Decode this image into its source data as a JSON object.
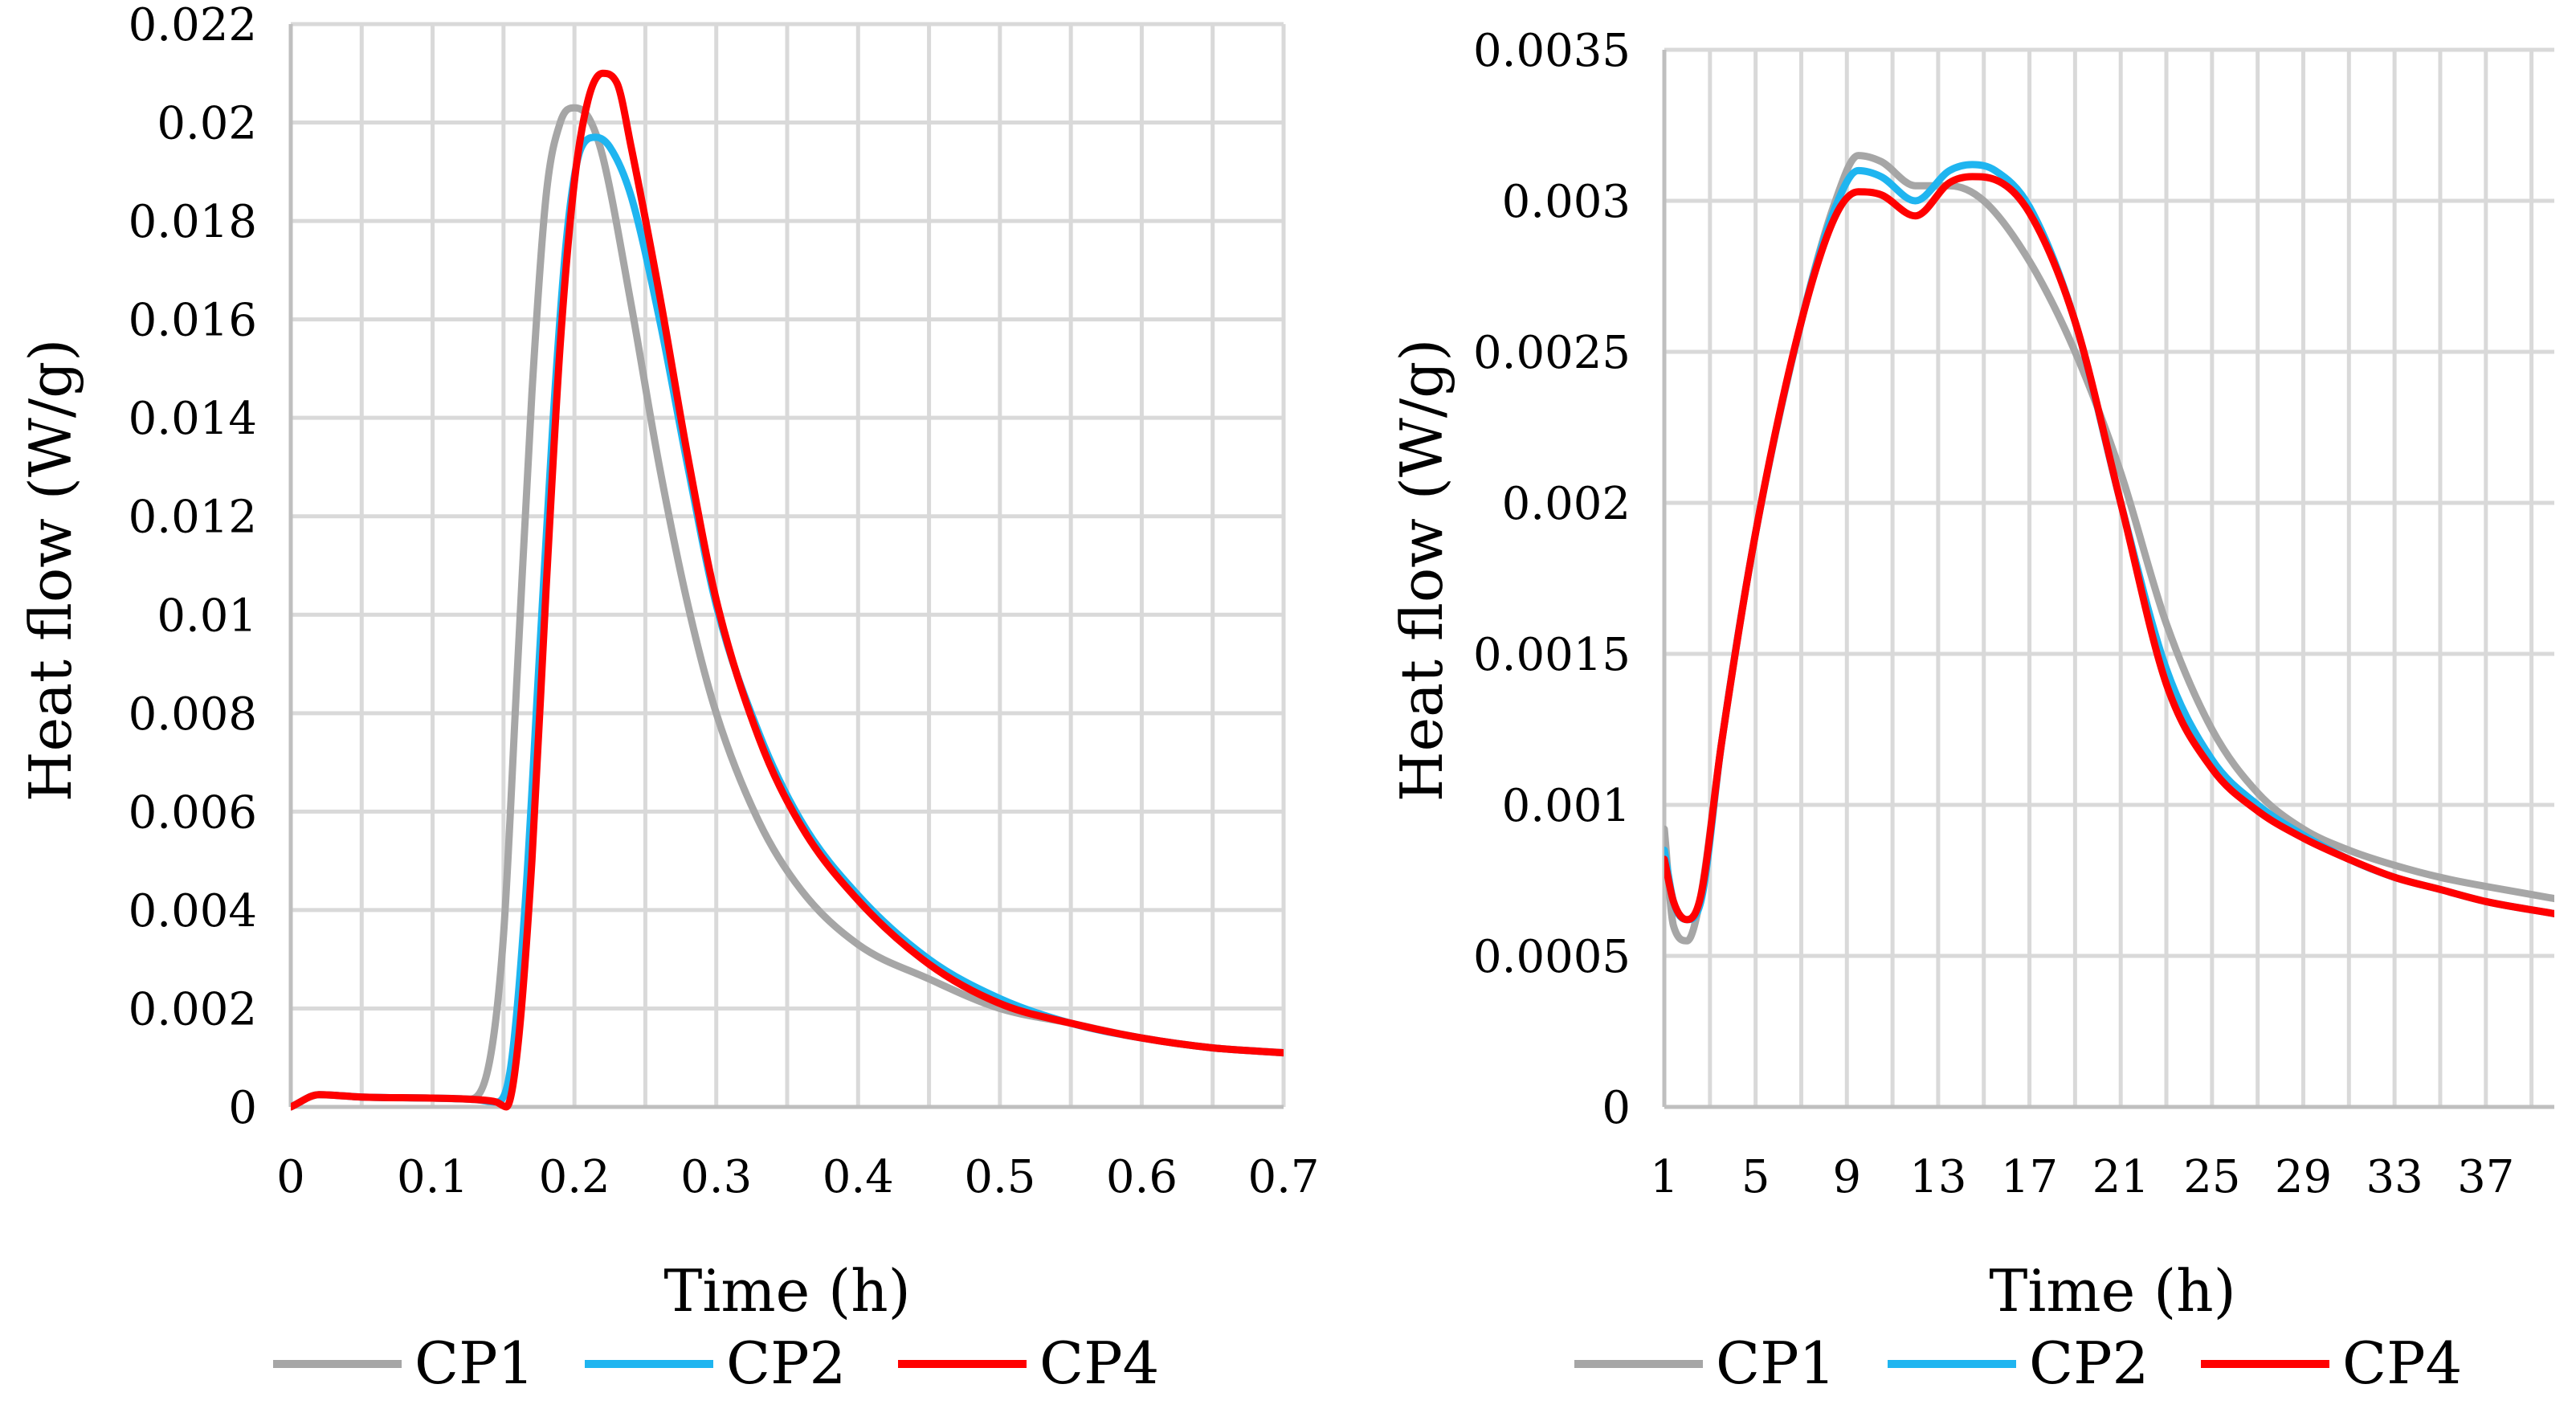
{
  "chart_data": [
    {
      "type": "line",
      "xlabel": "Time (h)",
      "ylabel": "Heat flow (W/g)",
      "xlim": [
        0,
        0.7
      ],
      "ylim": [
        0,
        0.022
      ],
      "x_ticks": [
        0,
        0.1,
        0.2,
        0.3,
        0.4,
        0.5,
        0.6,
        0.7
      ],
      "x_tick_labels": [
        "0",
        "0.1",
        "0.2",
        "0.3",
        "0.4",
        "0.5",
        "0.6",
        "0.7"
      ],
      "y_ticks": [
        0,
        0.002,
        0.004,
        0.006,
        0.008,
        0.01,
        0.012,
        0.014,
        0.016,
        0.018,
        0.02,
        0.022
      ],
      "y_tick_labels": [
        "0",
        "0.002",
        "0.004",
        "0.006",
        "0.008",
        "0.01",
        "0.012",
        "0.014",
        "0.016",
        "0.018",
        "0.02",
        "0.022"
      ],
      "grid": true,
      "legend_position": "bottom",
      "series": [
        {
          "name": "CP1",
          "color": "#A6A6A6",
          "x": [
            0,
            0.02,
            0.05,
            0.1,
            0.125,
            0.14,
            0.15,
            0.16,
            0.17,
            0.18,
            0.19,
            0.2,
            0.21,
            0.22,
            0.24,
            0.26,
            0.28,
            0.3,
            0.33,
            0.36,
            0.4,
            0.45,
            0.5,
            0.55,
            0.6,
            0.65,
            0.7
          ],
          "y": [
            0,
            0.00025,
            0.0002,
            0.00018,
            0.00016,
            0.0009,
            0.0035,
            0.009,
            0.0145,
            0.0185,
            0.02,
            0.0203,
            0.0201,
            0.0193,
            0.0163,
            0.013,
            0.0102,
            0.008,
            0.0058,
            0.0044,
            0.0033,
            0.0026,
            0.002,
            0.0017,
            0.0014,
            0.0012,
            0.0011
          ]
        },
        {
          "name": "CP2",
          "color": "#1FB5F0",
          "x": [
            0,
            0.02,
            0.05,
            0.1,
            0.13,
            0.145,
            0.155,
            0.165,
            0.175,
            0.185,
            0.195,
            0.205,
            0.215,
            0.225,
            0.24,
            0.26,
            0.28,
            0.3,
            0.33,
            0.36,
            0.4,
            0.45,
            0.5,
            0.55,
            0.6,
            0.65,
            0.7
          ],
          "y": [
            0,
            0.00025,
            0.0002,
            0.00018,
            0.00015,
            0.0001,
            0.0008,
            0.004,
            0.009,
            0.014,
            0.0178,
            0.0195,
            0.0197,
            0.0195,
            0.0185,
            0.016,
            0.013,
            0.0102,
            0.0076,
            0.0058,
            0.0043,
            0.003,
            0.0022,
            0.0017,
            0.0014,
            0.0012,
            0.0011
          ]
        },
        {
          "name": "CP4",
          "color": "#FF0000",
          "x": [
            0,
            0.02,
            0.05,
            0.1,
            0.13,
            0.145,
            0.152,
            0.16,
            0.17,
            0.18,
            0.19,
            0.2,
            0.21,
            0.22,
            0.23,
            0.24,
            0.26,
            0.28,
            0.3,
            0.33,
            0.36,
            0.4,
            0.45,
            0.5,
            0.55,
            0.6,
            0.65,
            0.7
          ],
          "y": [
            0,
            0.00025,
            0.0002,
            0.00018,
            0.00015,
            0.0001,
            0.0,
            0.0012,
            0.005,
            0.0105,
            0.0155,
            0.0188,
            0.0205,
            0.021,
            0.0208,
            0.0195,
            0.0165,
            0.0132,
            0.0103,
            0.0075,
            0.0057,
            0.0042,
            0.0029,
            0.0021,
            0.0017,
            0.0014,
            0.0012,
            0.0011
          ]
        }
      ]
    },
    {
      "type": "line",
      "xlabel": "Time (h)",
      "ylabel": "Heat flow (W/g)",
      "xlim": [
        1,
        40
      ],
      "ylim": [
        0,
        0.0035
      ],
      "x_ticks": [
        1,
        5,
        9,
        13,
        17,
        21,
        25,
        29,
        33,
        37
      ],
      "x_tick_labels": [
        "1",
        "5",
        "9",
        "13",
        "17",
        "21",
        "25",
        "29",
        "33",
        "37"
      ],
      "y_ticks": [
        0,
        0.0005,
        0.001,
        0.0015,
        0.002,
        0.0025,
        0.003,
        0.0035
      ],
      "y_tick_labels": [
        "0",
        "0.0005",
        "0.001",
        "0.0015",
        "0.002",
        "0.0025",
        "0.003",
        "0.0035"
      ],
      "grid": true,
      "legend_position": "bottom",
      "series": [
        {
          "name": "CP1",
          "color": "#A6A6A6",
          "x": [
            1,
            1.4,
            2,
            2.6,
            3.5,
            5,
            7,
            8.5,
            9.5,
            10.5,
            12,
            13.5,
            15,
            17,
            19,
            21,
            23,
            25,
            27,
            29,
            31,
            33,
            35,
            37,
            40
          ],
          "y": [
            0.00092,
            0.0006,
            0.00055,
            0.0007,
            0.0012,
            0.0019,
            0.0026,
            0.003,
            0.00315,
            0.00313,
            0.00305,
            0.00305,
            0.003,
            0.0028,
            0.0025,
            0.0021,
            0.0016,
            0.00125,
            0.00104,
            0.00092,
            0.00085,
            0.0008,
            0.00076,
            0.00073,
            0.00069
          ]
        },
        {
          "name": "CP2",
          "color": "#1FB5F0",
          "x": [
            1,
            1.4,
            2,
            2.6,
            3.5,
            5,
            7,
            8.5,
            9.5,
            10.5,
            12,
            13.5,
            14.5,
            15.5,
            17,
            19,
            21,
            23,
            25,
            27,
            29,
            31,
            33,
            35,
            37,
            40
          ],
          "y": [
            0.00085,
            0.00068,
            0.00062,
            0.00068,
            0.0012,
            0.0019,
            0.0026,
            0.00298,
            0.0031,
            0.00308,
            0.003,
            0.0031,
            0.00312,
            0.0031,
            0.00298,
            0.0026,
            0.002,
            0.00145,
            0.00115,
            0.001,
            0.0009,
            0.00082,
            0.00076,
            0.00072,
            0.00068,
            0.00064
          ]
        },
        {
          "name": "CP4",
          "color": "#FF0000",
          "x": [
            1,
            1.4,
            2,
            2.6,
            3.5,
            5,
            7,
            8.5,
            9.5,
            10.5,
            12,
            13.5,
            14.5,
            15.5,
            17,
            19,
            21,
            23,
            25,
            27,
            29,
            31,
            33,
            35,
            37,
            40
          ],
          "y": [
            0.00082,
            0.00068,
            0.00062,
            0.0007,
            0.0012,
            0.0019,
            0.0026,
            0.00295,
            0.00303,
            0.00302,
            0.00295,
            0.00306,
            0.00308,
            0.00307,
            0.00296,
            0.0026,
            0.002,
            0.0014,
            0.00112,
            0.00098,
            0.00089,
            0.00082,
            0.00076,
            0.00072,
            0.00068,
            0.00064
          ]
        }
      ]
    }
  ]
}
